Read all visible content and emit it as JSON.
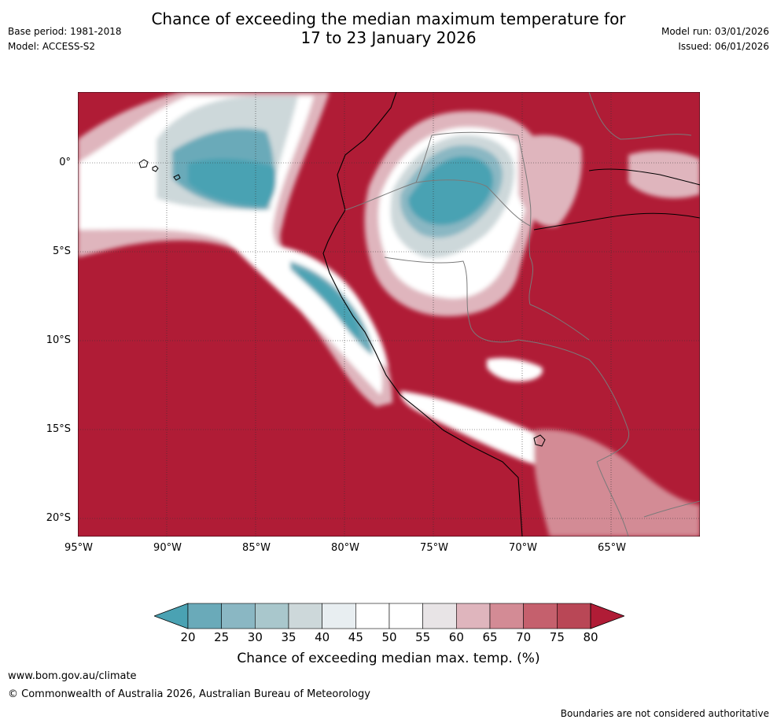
{
  "header": {
    "title_line1": "Chance of exceeding the median maximum temperature for",
    "title_line2": "17 to 23 January 2026",
    "base_period": "Base period: 1981-2018",
    "model": "Model: ACCESS-S2",
    "model_run": "Model run: 03/01/2026",
    "issued": "Issued: 06/01/2026"
  },
  "map": {
    "lat_labels": [
      "0°",
      "5°S",
      "10°S",
      "15°S",
      "20°S"
    ],
    "lon_labels": [
      "95°W",
      "90°W",
      "85°W",
      "80°W",
      "75°W",
      "70°W",
      "65°W"
    ]
  },
  "colorbar": {
    "ticks": [
      "20",
      "25",
      "30",
      "35",
      "40",
      "45",
      "50",
      "55",
      "60",
      "65",
      "70",
      "75",
      "80"
    ],
    "label": "Chance of exceeding median max. temp. (%)",
    "colors": [
      "#4aa2b3",
      "#6aaab9",
      "#8ab7c3",
      "#a9c7cc",
      "#cdd8da",
      "#e8eef1",
      "#ffffff",
      "#ffffff",
      "#e8e4e6",
      "#dfb5bd",
      "#d38b95",
      "#c5606d",
      "#b94756",
      "#b01c36"
    ]
  },
  "footer": {
    "website": "www.bom.gov.au/climate",
    "copyright": "© Commonwealth of Australia 2026, Australian Bureau of Meteorology",
    "disclaimer": "Boundaries are not considered authoritative"
  }
}
